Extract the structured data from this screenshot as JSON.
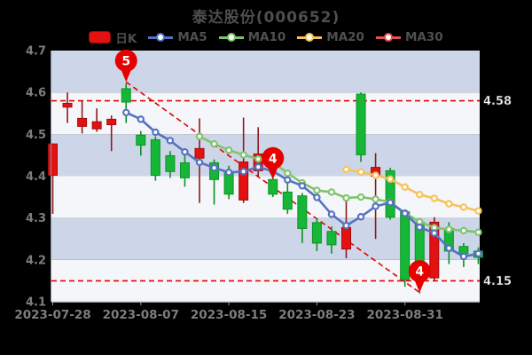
{
  "legend": [
    {
      "label": "日K",
      "type": "candle",
      "color": "#e31111",
      "border": "#8f0b0b"
    },
    {
      "label": "MA5",
      "type": "line",
      "color": "#5571c2"
    },
    {
      "label": "MA10",
      "type": "line",
      "color": "#7fc46c"
    },
    {
      "label": "MA20",
      "type": "line",
      "color": "#f6c35a"
    },
    {
      "label": "MA30",
      "type": "line",
      "color": "#e85050"
    }
  ],
  "chart_data": {
    "type": "candlestick",
    "title": "泰达股份(000652)",
    "ylim": [
      4.1,
      4.7
    ],
    "y_ticks": [
      "4.7",
      "4.6",
      "4.5",
      "4.4",
      "4.3",
      "4.2",
      "4.1"
    ],
    "x_tick_indices": [
      0,
      6,
      12,
      18,
      24
    ],
    "x_tick_labels": [
      "2023-07-28",
      "2023-08-07",
      "2023-08-15",
      "2023-08-23",
      "2023-08-31"
    ],
    "grid": "alternating-horizontal-bands",
    "legend_position": "top",
    "dates": [
      "2023-07-28",
      "2023-07-31",
      "2023-08-01",
      "2023-08-02",
      "2023-08-03",
      "2023-08-04",
      "2023-08-07",
      "2023-08-08",
      "2023-08-09",
      "2023-08-10",
      "2023-08-11",
      "2023-08-14",
      "2023-08-15",
      "2023-08-16",
      "2023-08-17",
      "2023-08-18",
      "2023-08-21",
      "2023-08-22",
      "2023-08-23",
      "2023-08-24",
      "2023-08-25",
      "2023-08-28",
      "2023-08-29",
      "2023-08-30",
      "2023-08-31",
      "2023-09-01",
      "2023-09-04",
      "2023-09-05",
      "2023-09-06",
      "2023-09-07"
    ],
    "ohlc_order": [
      "open",
      "high",
      "low",
      "close"
    ],
    "candles": [
      [
        4.402,
        4.478,
        4.31,
        4.477
      ],
      [
        4.565,
        4.6,
        4.527,
        4.574
      ],
      [
        4.519,
        4.581,
        4.502,
        4.538
      ],
      [
        4.513,
        4.562,
        4.506,
        4.53
      ],
      [
        4.523,
        4.545,
        4.46,
        4.536
      ],
      [
        4.609,
        4.622,
        4.527,
        4.577
      ],
      [
        4.498,
        4.508,
        4.449,
        4.474
      ],
      [
        4.487,
        4.495,
        4.389,
        4.402
      ],
      [
        4.449,
        4.46,
        4.396,
        4.411
      ],
      [
        4.432,
        4.45,
        4.375,
        4.396
      ],
      [
        4.443,
        4.538,
        4.336,
        4.466
      ],
      [
        4.432,
        4.44,
        4.332,
        4.392
      ],
      [
        4.411,
        4.425,
        4.345,
        4.357
      ],
      [
        4.343,
        4.54,
        4.336,
        4.434
      ],
      [
        4.413,
        4.517,
        4.4,
        4.453
      ],
      [
        4.392,
        4.4,
        4.35,
        4.357
      ],
      [
        4.362,
        4.385,
        4.31,
        4.321
      ],
      [
        4.353,
        4.36,
        4.24,
        4.275
      ],
      [
        4.289,
        4.3,
        4.221,
        4.24
      ],
      [
        4.268,
        4.28,
        4.215,
        4.236
      ],
      [
        4.226,
        4.355,
        4.204,
        4.277
      ],
      [
        4.596,
        4.6,
        4.434,
        4.451
      ],
      [
        4.4,
        4.455,
        4.25,
        4.421
      ],
      [
        4.413,
        4.42,
        4.296,
        4.302
      ],
      [
        4.315,
        4.32,
        4.136,
        4.153
      ],
      [
        4.29,
        4.3,
        4.12,
        4.15
      ],
      [
        4.157,
        4.302,
        4.15,
        4.29
      ],
      [
        4.275,
        4.29,
        4.19,
        4.221
      ],
      [
        4.232,
        4.24,
        4.183,
        4.215
      ],
      [
        4.221,
        4.23,
        4.19,
        4.206
      ]
    ],
    "series": [
      {
        "name": "MA5",
        "start_index": 5,
        "values": [
          4.552,
          4.536,
          4.505,
          4.485,
          4.458,
          4.433,
          4.42,
          4.409,
          4.411,
          4.422,
          4.412,
          4.391,
          4.377,
          4.349,
          4.309,
          4.282,
          4.303,
          4.328,
          4.337,
          4.311,
          4.278,
          4.264,
          4.228,
          4.208,
          4.215
        ]
      },
      {
        "name": "MA10",
        "start_index": 10,
        "values": [
          4.495,
          4.477,
          4.462,
          4.451,
          4.441,
          4.434,
          4.407,
          4.384,
          4.366,
          4.362,
          4.348,
          4.35,
          4.345,
          4.338,
          4.312,
          4.291,
          4.277,
          4.273,
          4.27,
          4.266
        ]
      },
      {
        "name": "MA20",
        "start_index": 20,
        "values": [
          4.416,
          4.41,
          4.402,
          4.393,
          4.374,
          4.356,
          4.347,
          4.334,
          4.326,
          4.317
        ]
      },
      {
        "name": "MA30",
        "start_index": null,
        "values": []
      }
    ],
    "markers": [
      {
        "index": 5,
        "label": "5",
        "anchor_value": 4.625
      },
      {
        "index": 15,
        "label": "4",
        "anchor_value": 4.392
      },
      {
        "index": 25,
        "label": "4",
        "anchor_value": 4.122
      }
    ],
    "ref_lines": {
      "horizontal": [
        {
          "value": 4.58,
          "label": "4.58"
        },
        {
          "value": 4.15,
          "label": "4.15"
        }
      ],
      "trend": {
        "from_index": 5,
        "from_value": 4.625,
        "to_index": 25,
        "to_value": 4.122
      }
    },
    "colors": {
      "background": "#000000",
      "band_light": "#f4f6f9",
      "band_dark": "#ccd6e8",
      "candle_up": "#e31111",
      "candle_up_border": "#a30b0b",
      "wick_up": "#8c1a1a",
      "candle_down": "#16b637",
      "candle_down_border": "#0d9226",
      "wick_down": "#0d8f24",
      "ma5": "#5571c2",
      "ma10": "#7fc46c",
      "ma20": "#f6c35a",
      "ma30": "#e85050",
      "ref_line": "#e60000",
      "marker": "#e60000",
      "axis_line": "#c9ced8",
      "axis_text": "#7d7d7d",
      "right_label_text": "#f2f2f2"
    }
  }
}
